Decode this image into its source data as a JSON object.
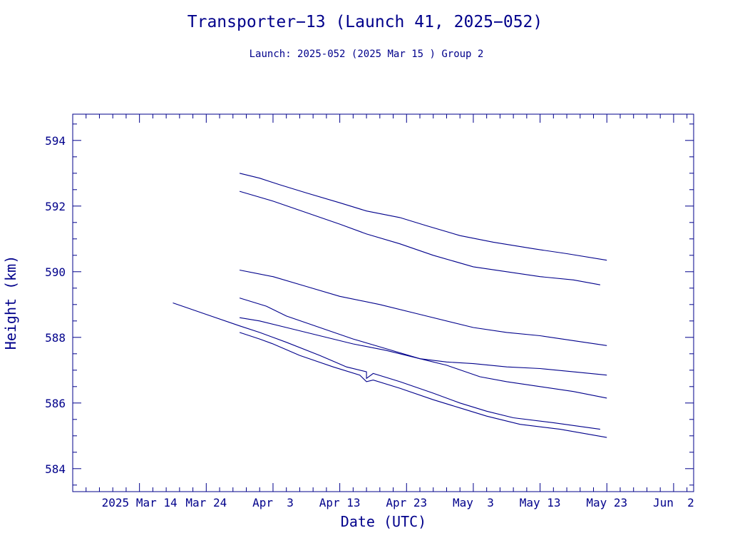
{
  "chart_data": {
    "type": "line",
    "title": "Transporter−13 (Launch 41, 2025−052)",
    "subtitle": "Launch: 2025-052  (2025 Mar 15 )  Group 2",
    "xlabel": "Date (UTC)",
    "ylabel": "Height (km)",
    "xlim": [
      "2025-03-04",
      "2025-06-05"
    ],
    "ylim": [
      583.3,
      594.8
    ],
    "x_ticks": [
      {
        "date": "2025-03-14",
        "label": "2025 Mar 14"
      },
      {
        "date": "2025-03-24",
        "label": "Mar 24"
      },
      {
        "date": "2025-04-03",
        "label": "Apr  3"
      },
      {
        "date": "2025-04-13",
        "label": "Apr 13"
      },
      {
        "date": "2025-04-23",
        "label": "Apr 23"
      },
      {
        "date": "2025-05-03",
        "label": "May  3"
      },
      {
        "date": "2025-05-13",
        "label": "May 13"
      },
      {
        "date": "2025-05-23",
        "label": "May 23"
      },
      {
        "date": "2025-06-02",
        "label": "Jun  2"
      }
    ],
    "y_ticks": [
      584,
      586,
      588,
      590,
      592,
      594
    ],
    "y_minor_step": 0.5,
    "x_minor_step_days": 2,
    "grid": false,
    "series": [
      {
        "points": [
          [
            "2025-03-29",
            593.0
          ],
          [
            "2025-04-01",
            592.85
          ],
          [
            "2025-04-04",
            592.65
          ],
          [
            "2025-04-08",
            592.4
          ],
          [
            "2025-04-13",
            592.1
          ],
          [
            "2025-04-17",
            591.85
          ],
          [
            "2025-04-22",
            591.65
          ],
          [
            "2025-04-26",
            591.4
          ],
          [
            "2025-05-01",
            591.1
          ],
          [
            "2025-05-06",
            590.9
          ],
          [
            "2025-05-12",
            590.7
          ],
          [
            "2025-05-17",
            590.55
          ],
          [
            "2025-05-23",
            590.35
          ]
        ]
      },
      {
        "points": [
          [
            "2025-03-29",
            592.45
          ],
          [
            "2025-04-03",
            592.15
          ],
          [
            "2025-04-08",
            591.8
          ],
          [
            "2025-04-13",
            591.45
          ],
          [
            "2025-04-17",
            591.15
          ],
          [
            "2025-04-22",
            590.85
          ],
          [
            "2025-04-27",
            590.5
          ],
          [
            "2025-05-03",
            590.15
          ],
          [
            "2025-05-08",
            590.0
          ],
          [
            "2025-05-13",
            589.85
          ],
          [
            "2025-05-18",
            589.75
          ],
          [
            "2025-05-22",
            589.6
          ]
        ]
      },
      {
        "points": [
          [
            "2025-03-29",
            590.05
          ],
          [
            "2025-04-03",
            589.85
          ],
          [
            "2025-04-08",
            589.55
          ],
          [
            "2025-04-13",
            589.25
          ],
          [
            "2025-04-19",
            589.0
          ],
          [
            "2025-04-25",
            588.7
          ],
          [
            "2025-05-03",
            588.3
          ],
          [
            "2025-05-08",
            588.15
          ],
          [
            "2025-05-13",
            588.05
          ],
          [
            "2025-05-18",
            587.9
          ],
          [
            "2025-05-23",
            587.75
          ]
        ]
      },
      {
        "points": [
          [
            "2025-03-29",
            589.2
          ],
          [
            "2025-04-02",
            588.95
          ],
          [
            "2025-04-05",
            588.65
          ],
          [
            "2025-04-10",
            588.3
          ],
          [
            "2025-04-15",
            587.95
          ],
          [
            "2025-04-20",
            587.65
          ],
          [
            "2025-04-25",
            587.35
          ],
          [
            "2025-04-29",
            587.15
          ],
          [
            "2025-05-04",
            586.8
          ],
          [
            "2025-05-08",
            586.65
          ],
          [
            "2025-05-13",
            586.5
          ],
          [
            "2025-05-18",
            586.35
          ],
          [
            "2025-05-23",
            586.15
          ]
        ]
      },
      {
        "points": [
          [
            "2025-03-29",
            588.6
          ],
          [
            "2025-04-01",
            588.5
          ],
          [
            "2025-04-05",
            588.3
          ],
          [
            "2025-04-10",
            588.05
          ],
          [
            "2025-04-15",
            587.8
          ],
          [
            "2025-04-20",
            587.6
          ],
          [
            "2025-04-25",
            587.35
          ],
          [
            "2025-04-29",
            587.25
          ],
          [
            "2025-05-03",
            587.2
          ],
          [
            "2025-05-08",
            587.1
          ],
          [
            "2025-05-13",
            587.05
          ],
          [
            "2025-05-18",
            586.95
          ],
          [
            "2025-05-23",
            586.85
          ]
        ]
      },
      {
        "points": [
          [
            "2025-03-19",
            589.05
          ],
          [
            "2025-03-24",
            588.7
          ],
          [
            "2025-03-29",
            588.35
          ],
          [
            "2025-04-01",
            588.15
          ],
          [
            "2025-04-05",
            587.85
          ],
          [
            "2025-04-10",
            587.45
          ],
          [
            "2025-04-14",
            587.1
          ],
          [
            "2025-04-17",
            586.95
          ],
          [
            "2025-04-17",
            586.75
          ],
          [
            "2025-04-18",
            586.9
          ],
          [
            "2025-04-22",
            586.65
          ],
          [
            "2025-04-27",
            586.3
          ],
          [
            "2025-05-01",
            586.0
          ],
          [
            "2025-05-05",
            585.75
          ],
          [
            "2025-05-09",
            585.55
          ],
          [
            "2025-05-15",
            585.4
          ],
          [
            "2025-05-22",
            585.2
          ]
        ]
      },
      {
        "points": [
          [
            "2025-03-29",
            588.15
          ],
          [
            "2025-04-01",
            587.95
          ],
          [
            "2025-04-03",
            587.8
          ],
          [
            "2025-04-07",
            587.45
          ],
          [
            "2025-04-12",
            587.1
          ],
          [
            "2025-04-16",
            586.85
          ],
          [
            "2025-04-17",
            586.65
          ],
          [
            "2025-04-18",
            586.7
          ],
          [
            "2025-04-22",
            586.45
          ],
          [
            "2025-04-27",
            586.1
          ],
          [
            "2025-05-01",
            585.85
          ],
          [
            "2025-05-05",
            585.6
          ],
          [
            "2025-05-10",
            585.35
          ],
          [
            "2025-05-16",
            585.2
          ],
          [
            "2025-05-23",
            584.95
          ]
        ]
      }
    ]
  }
}
